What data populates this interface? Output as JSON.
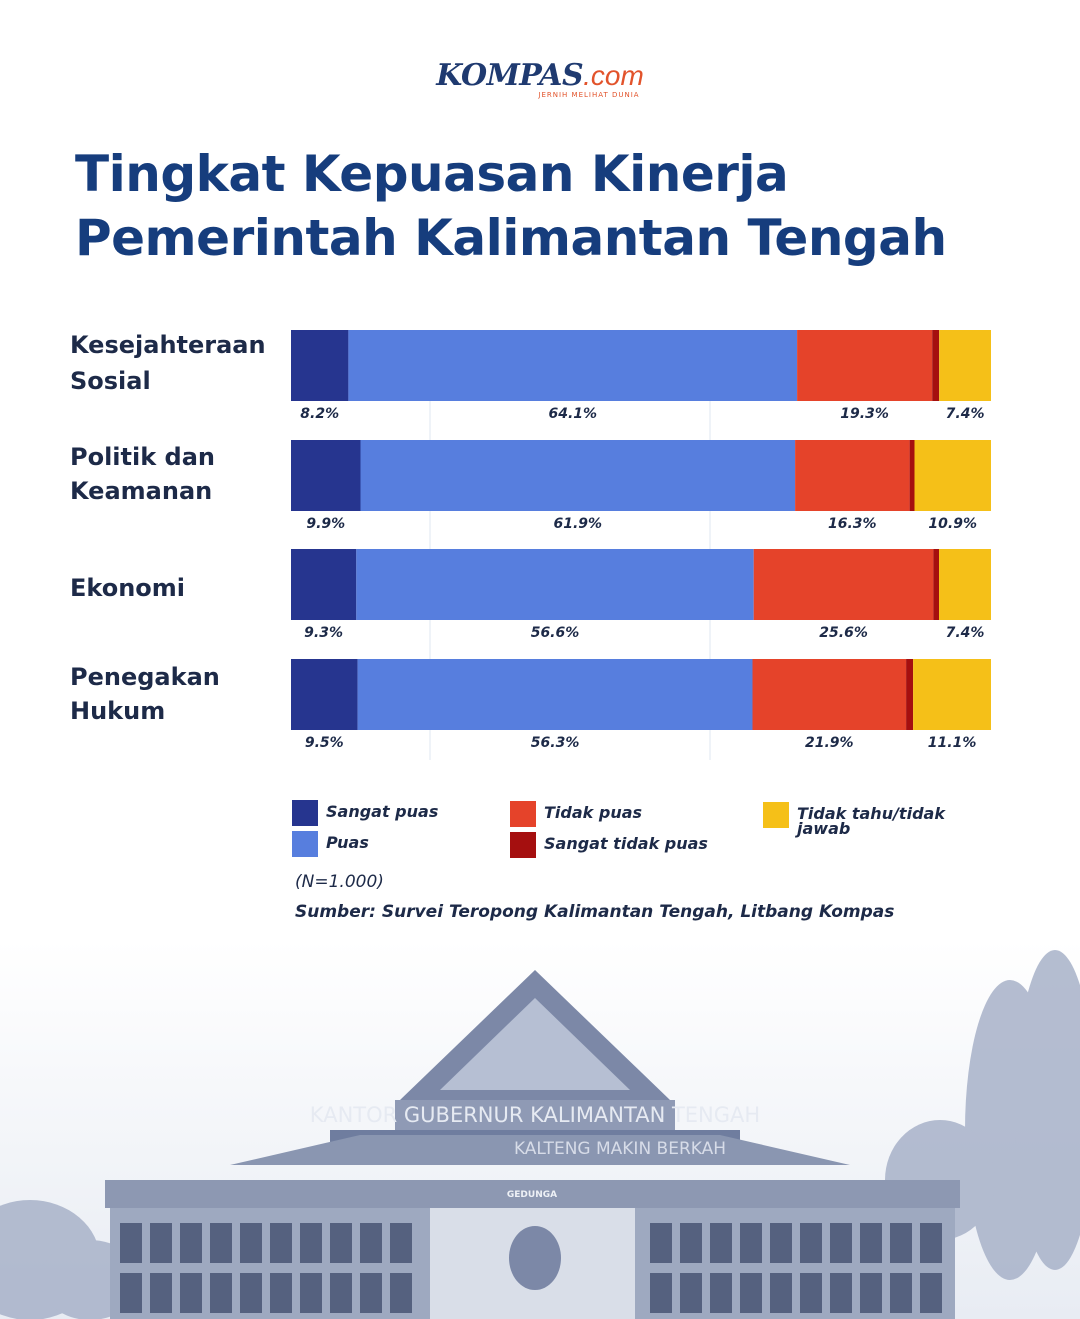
{
  "brand": {
    "logo_main": "KOMPAS",
    "logo_suffix": ".com",
    "tagline": "JERNIH MELIHAT DUNIA"
  },
  "title_line1": "Tingkat Kepuasan Kinerja",
  "title_line2": "Pemerintah Kalimantan Tengah",
  "chart_data": {
    "type": "bar",
    "orientation": "horizontal",
    "stacked": true,
    "categories": [
      "Kesejahteraan Sosial",
      "Politik dan Keamanan",
      "Ekonomi",
      "Penegakan Hukum"
    ],
    "category_labels": [
      [
        "Kesejahteraan",
        "Sosial"
      ],
      [
        "Politik dan",
        "Keamanan"
      ],
      [
        "Ekonomi"
      ],
      [
        "Penegakan",
        "Hukum"
      ]
    ],
    "series": [
      {
        "name": "Sangat puas",
        "color": "#26358f",
        "values": [
          8.2,
          9.9,
          9.3,
          9.5
        ],
        "labels": [
          "8.2%",
          "9.9%",
          "9.3%",
          "9.5%"
        ]
      },
      {
        "name": "Puas",
        "color": "#577ede",
        "values": [
          64.1,
          61.9,
          56.6,
          56.3
        ],
        "labels": [
          "64.1%",
          "61.9%",
          "56.6%",
          "56.3%"
        ]
      },
      {
        "name": "Tidak puas",
        "color": "#e5432a",
        "values": [
          19.3,
          16.3,
          25.6,
          21.9
        ],
        "labels": [
          "19.3%",
          "16.3%",
          "25.6%",
          "21.9%"
        ]
      },
      {
        "name": "Sangat tidak puas",
        "color": "#a50f0f",
        "values": [
          1.0,
          0.7,
          0.8,
          1.0
        ]
      },
      {
        "name": "Tidak tahu/tidak jawab",
        "color": "#f5c018",
        "values": [
          7.4,
          10.9,
          7.4,
          11.1
        ],
        "labels": [
          "7.4%",
          "10.9%",
          "7.4%",
          "11.1%"
        ]
      }
    ],
    "legend_labels": {
      "sangat_puas": "Sangat puas",
      "puas": "Puas",
      "tidak_puas": "Tidak puas",
      "sangat_tidak_puas": "Sangat tidak puas",
      "tidak_tahu_line1": "Tidak tahu/tidak",
      "tidak_tahu_line2": "jawab"
    },
    "xlim": [
      0,
      100
    ],
    "unit": "%",
    "legend_position": "bottom"
  },
  "note": "(N=1.000)",
  "source": "Sumber: Survei Teropong Kalimantan Tengah, Litbang Kompas",
  "photo_sign": {
    "line1": "KANTOR GUBERNUR KALIMANTAN TENGAH",
    "line2": "KALTENG MAKIN BERKAH",
    "line3": "GEDUNGA"
  }
}
